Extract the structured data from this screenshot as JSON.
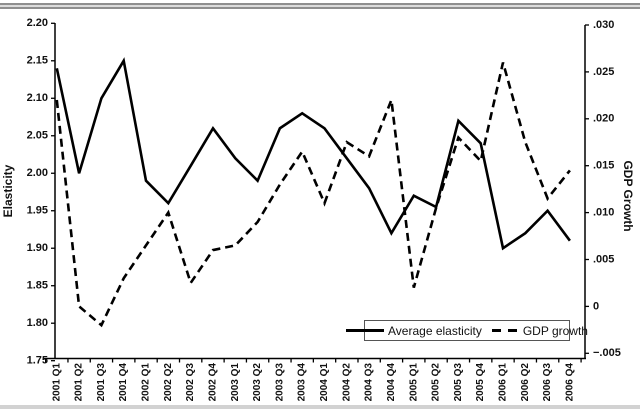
{
  "chart_data": {
    "type": "line",
    "categories": [
      "2001 Q1",
      "2001 Q2",
      "2001 Q3",
      "2001 Q4",
      "2002 Q1",
      "2002 Q2",
      "2002 Q3",
      "2002 Q4",
      "2003 Q1",
      "2003 Q2",
      "2003 Q3",
      "2003 Q4",
      "2004 Q1",
      "2004 Q2",
      "2004 Q3",
      "2004 Q4",
      "2005 Q1",
      "2005 Q2",
      "2005 Q3",
      "2005 Q4",
      "2006 Q1",
      "2006 Q2",
      "2006 Q3",
      "2006 Q4"
    ],
    "series": [
      {
        "name": "Average elasticity",
        "style": "solid",
        "axis": "left",
        "values": [
          2.14,
          2.0,
          2.1,
          2.15,
          1.99,
          1.96,
          2.01,
          2.06,
          2.02,
          1.99,
          2.06,
          2.08,
          2.06,
          2.02,
          1.98,
          1.92,
          1.97,
          1.955,
          2.07,
          2.04,
          1.9,
          1.92,
          1.95,
          1.91
        ]
      },
      {
        "name": "GDP growth",
        "style": "dashed",
        "axis": "right",
        "values": [
          0.022,
          0.0,
          -0.002,
          0.003,
          0.0065,
          0.01,
          0.0025,
          0.006,
          0.0065,
          0.009,
          0.013,
          0.0165,
          0.011,
          0.0175,
          0.016,
          0.022,
          0.002,
          0.0105,
          0.018,
          0.0155,
          0.026,
          0.0175,
          0.0115,
          0.0145
        ]
      }
    ],
    "left_axis": {
      "label": "Elasticity",
      "min": 1.75,
      "max": 2.2,
      "step": 0.05,
      "ticks": [
        "2.20",
        "2.15",
        "2.10",
        "2.05",
        "2.00",
        "1.95",
        "1.90",
        "1.85",
        "1.80",
        "1.75"
      ]
    },
    "right_axis": {
      "label": "GDP Growth",
      "min": -0.005,
      "max": 0.03,
      "step": 0.005,
      "ticks": [
        ".030",
        ".025",
        ".020",
        ".015",
        ".010",
        ".005",
        "0",
        "−.005"
      ]
    },
    "legend": {
      "position": "inside-bottom-right",
      "items": [
        "Average elasticity",
        "GDP growth"
      ]
    },
    "line_color": "#000000",
    "grid": "off"
  }
}
